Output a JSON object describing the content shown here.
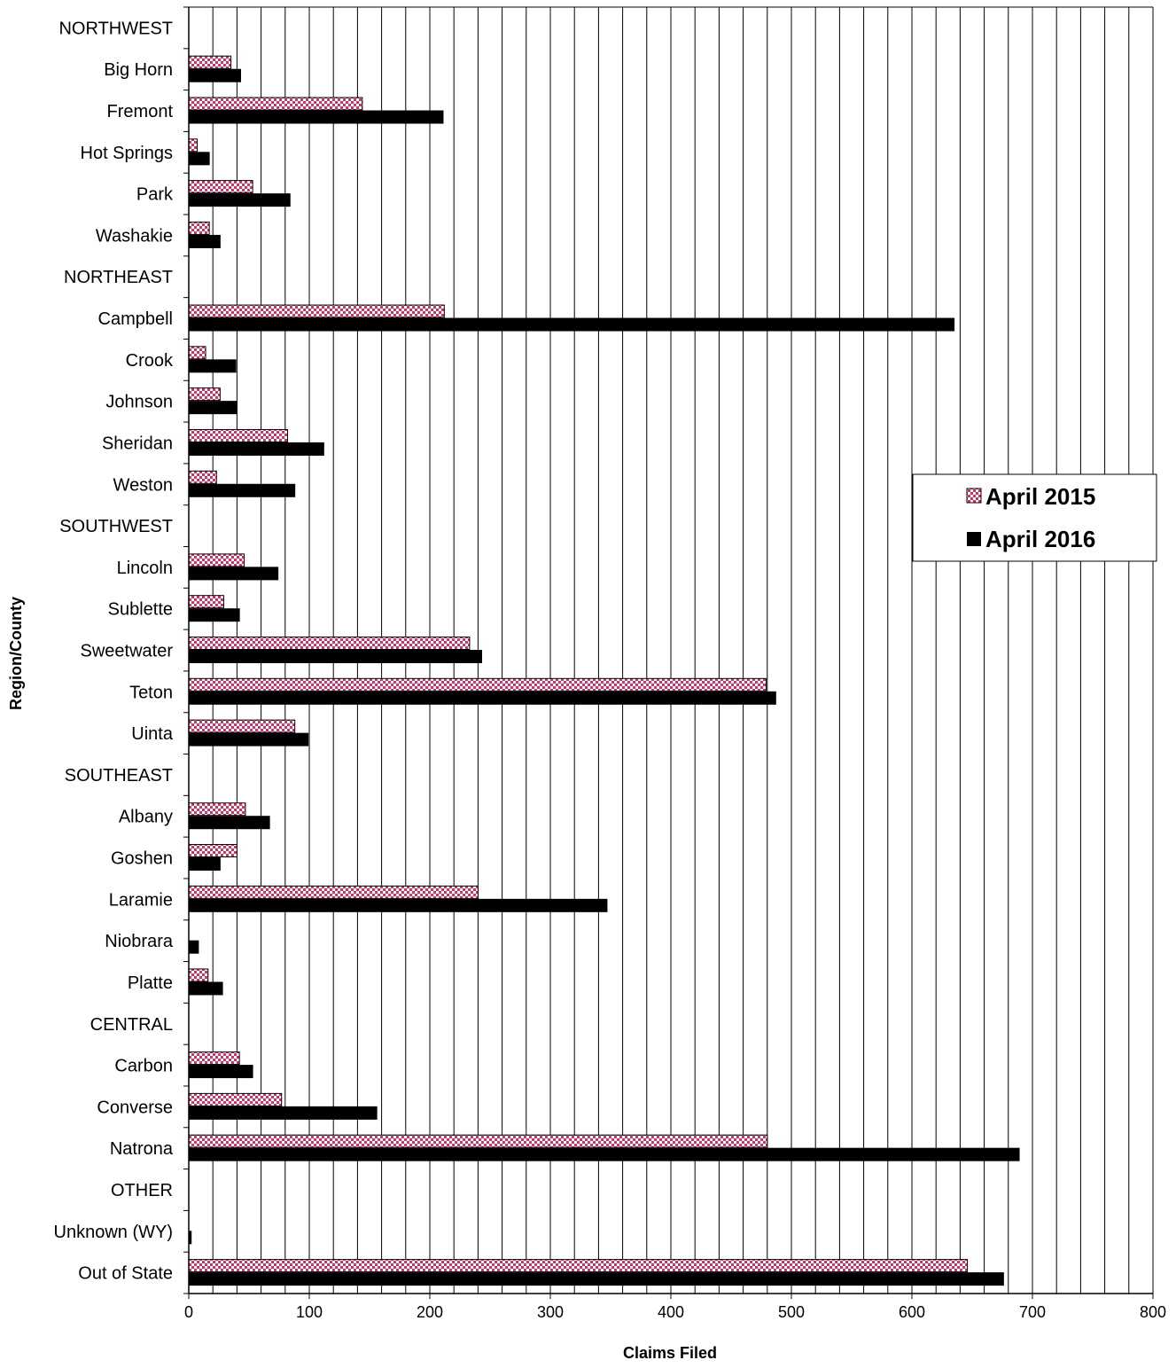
{
  "chart_data": {
    "type": "bar",
    "orientation": "horizontal",
    "xlabel": "Claims Filed",
    "ylabel": "Region/County",
    "xlim": [
      0,
      800
    ],
    "x_ticks": [
      0,
      100,
      200,
      300,
      400,
      500,
      600,
      700,
      800
    ],
    "x_minor_step": 20,
    "grid": "vertical",
    "legend_position": "right",
    "categories": [
      "NORTHWEST",
      "Big Horn",
      "Fremont",
      "Hot Springs",
      "Park",
      "Washakie",
      "NORTHEAST",
      "Campbell",
      "Crook",
      "Johnson",
      "Sheridan",
      "Weston",
      "SOUTHWEST",
      "Lincoln",
      "Sublette",
      "Sweetwater",
      "Teton",
      "Uinta",
      "SOUTHEAST",
      "Albany",
      "Goshen",
      "Laramie",
      "Niobrara",
      "Platte",
      "CENTRAL",
      "Carbon",
      "Converse",
      "Natrona",
      "OTHER",
      "Unknown (WY)",
      "Out of State"
    ],
    "series": [
      {
        "name": "April 2015",
        "color": "#cc3366",
        "pattern": "checkered",
        "values": [
          null,
          35,
          144,
          7,
          53,
          17,
          null,
          212,
          14,
          26,
          82,
          23,
          null,
          46,
          29,
          233,
          479,
          88,
          null,
          47,
          40,
          240,
          0,
          16,
          null,
          42,
          77,
          480,
          null,
          0,
          646
        ]
      },
      {
        "name": "April 2016",
        "color": "#000000",
        "pattern": "solid",
        "values": [
          null,
          43,
          211,
          17,
          84,
          26,
          null,
          635,
          39,
          40,
          112,
          88,
          null,
          74,
          42,
          243,
          487,
          99,
          null,
          67,
          26,
          347,
          8,
          28,
          null,
          53,
          156,
          689,
          null,
          2,
          676
        ]
      }
    ]
  }
}
